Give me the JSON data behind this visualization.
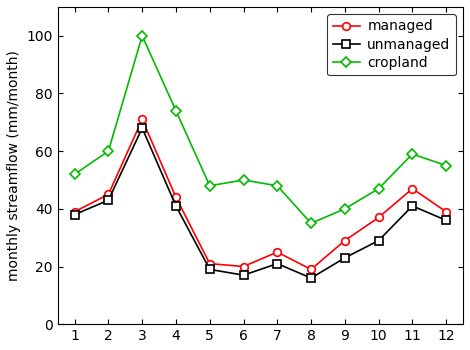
{
  "months": [
    1,
    2,
    3,
    4,
    5,
    6,
    7,
    8,
    9,
    10,
    11,
    12
  ],
  "managed": [
    39,
    45,
    71,
    44,
    21,
    20,
    25,
    19,
    29,
    37,
    47,
    39
  ],
  "unmanaged": [
    38,
    43,
    68,
    41,
    19,
    17,
    21,
    16,
    23,
    29,
    41,
    36
  ],
  "cropland": [
    52,
    60,
    100,
    74,
    48,
    50,
    48,
    35,
    40,
    47,
    59,
    55
  ],
  "managed_color": "#ff0000",
  "unmanaged_color": "#000000",
  "cropland_color": "#00bb00",
  "ylabel": "monthly streamflow (mm/month)",
  "ylim": [
    0,
    110
  ],
  "xlim": [
    0.5,
    12.5
  ],
  "xticks": [
    1,
    2,
    3,
    4,
    5,
    6,
    7,
    8,
    9,
    10,
    11,
    12
  ],
  "yticks": [
    0,
    20,
    40,
    60,
    80,
    100
  ],
  "legend_labels": [
    "managed",
    "unmanaged",
    "cropland"
  ],
  "marker_managed": "o",
  "marker_unmanaged": "s",
  "marker_cropland": "D",
  "linewidth": 1.2,
  "markersize": 5.5,
  "tick_fontsize": 10,
  "label_fontsize": 10,
  "legend_fontsize": 10
}
